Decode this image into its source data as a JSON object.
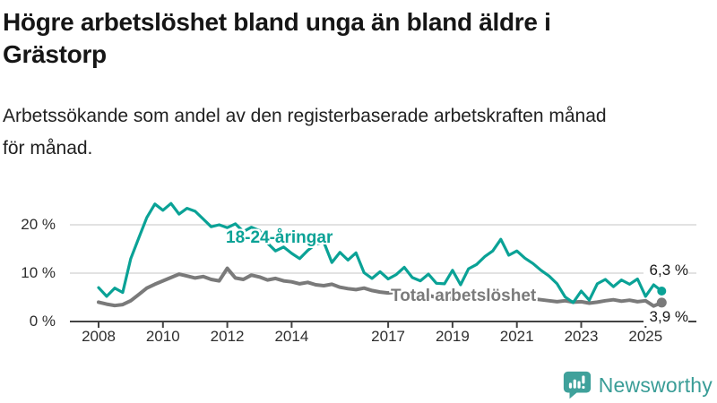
{
  "header": {
    "title_lines": [
      "Högre arbetslöshet bland unga än bland äldre i",
      "Grästorp"
    ],
    "subtitle_lines": [
      "Arbetssökande som andel av den registerbaserade arbetskraften månad",
      "för månad."
    ]
  },
  "chart_data": {
    "type": "line",
    "title": "Högre arbetslöshet bland unga än bland äldre i Grästorp",
    "subtitle": "Arbetssökande som andel av den registerbaserade arbetskraften månad för månad.",
    "unit": "%",
    "grid": "horizontal",
    "legend_position": "inline-labels",
    "x": {
      "start": 2008,
      "step_years": 0.25,
      "end": 2025.5
    },
    "x_ticks": [
      2008,
      2010,
      2012,
      2014,
      2017,
      2019,
      2021,
      2023,
      2025
    ],
    "y_ticks": [
      0,
      10,
      20
    ],
    "y_tick_labels": [
      "0 %",
      "10 %",
      "20 %"
    ],
    "ylim": [
      0,
      27
    ],
    "series": [
      {
        "id": "youth",
        "name": "18-24-åringar",
        "color": "#0aa296",
        "end_label": "6,3 %",
        "end_value": 6.3,
        "values": [
          7.0,
          5.2,
          6.9,
          6.0,
          13.0,
          17.3,
          21.5,
          24.3,
          23.0,
          24.4,
          22.2,
          23.4,
          22.8,
          21.2,
          19.6,
          20.0,
          19.4,
          20.2,
          18.6,
          19.5,
          18.8,
          16.2,
          14.6,
          15.4,
          14.1,
          13.0,
          14.7,
          16.0,
          16.4,
          12.2,
          14.3,
          12.7,
          14.2,
          10.1,
          8.9,
          10.3,
          8.8,
          9.7,
          11.2,
          9.1,
          8.4,
          9.8,
          7.9,
          7.8,
          10.6,
          7.6,
          10.9,
          11.8,
          13.4,
          14.6,
          17.0,
          13.7,
          14.6,
          13.1,
          12.0,
          10.6,
          9.4,
          7.8,
          5.1,
          3.9,
          6.3,
          4.4,
          7.8,
          8.7,
          7.2,
          8.6,
          7.7,
          8.8,
          5.2,
          7.6,
          6.3
        ]
      },
      {
        "id": "total",
        "name": "Total arbetslöshet",
        "color": "#7a7a7a",
        "end_label": "3,9 %",
        "end_value": 3.9,
        "values": [
          4.0,
          3.6,
          3.3,
          3.5,
          4.3,
          5.6,
          6.9,
          7.7,
          8.4,
          9.1,
          9.8,
          9.4,
          9.0,
          9.3,
          8.7,
          8.4,
          11.0,
          9.0,
          8.7,
          9.6,
          9.2,
          8.6,
          8.9,
          8.4,
          8.2,
          7.8,
          8.1,
          7.6,
          7.4,
          7.7,
          7.1,
          6.8,
          6.6,
          6.9,
          6.4,
          6.1,
          5.9,
          6.1,
          5.7,
          5.4,
          5.2,
          5.4,
          5.0,
          4.8,
          4.7,
          4.9,
          4.6,
          4.8,
          5.2,
          5.9,
          5.7,
          5.4,
          5.2,
          5.0,
          4.7,
          4.5,
          4.3,
          4.1,
          4.3,
          4.0,
          4.1,
          3.8,
          4.0,
          4.3,
          4.5,
          4.2,
          4.4,
          4.1,
          4.3,
          3.2,
          3.9
        ]
      }
    ]
  },
  "branding": {
    "name": "Newsworthy",
    "icon": "newsworthy-bubble-chart-icon",
    "icon_color": "#3fa19b",
    "wordmark_color": "#3a9d97"
  },
  "colors": {
    "gridline": "#d8d8d8",
    "axis": "#434343",
    "tick_label": "#2e2e2e",
    "title": "#161616",
    "subtitle": "#212121",
    "value_label": "#1a1a1a"
  }
}
